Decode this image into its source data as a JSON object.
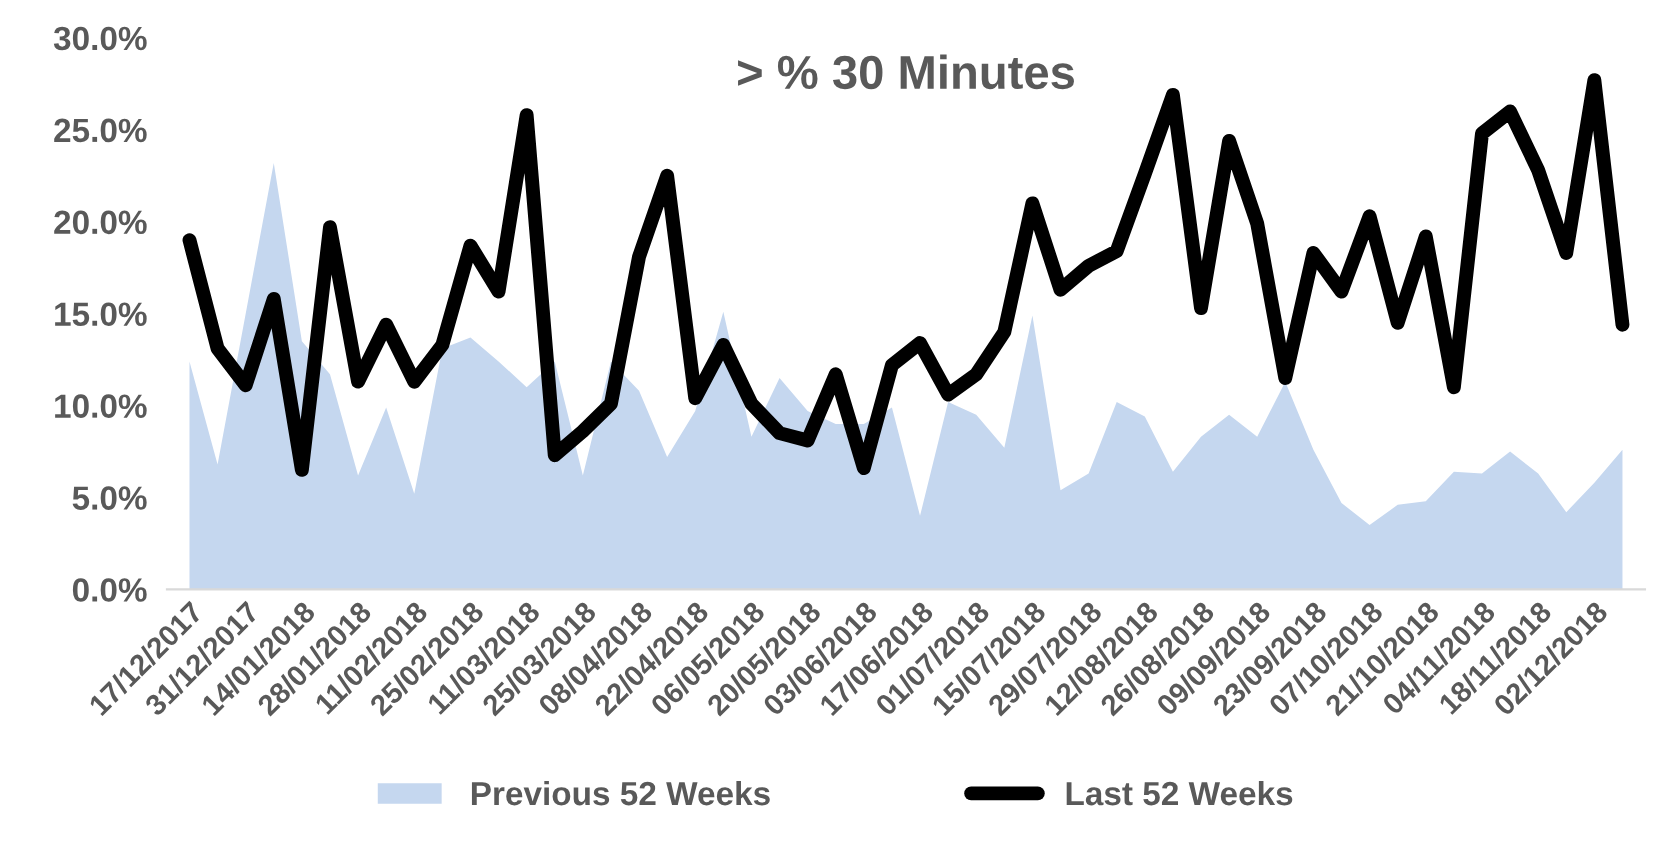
{
  "chart_data": {
    "type": "line",
    "title": "> % 30 Minutes",
    "categories": [
      "17/12/2017",
      null,
      "31/12/2017",
      null,
      "14/01/2018",
      null,
      "28/01/2018",
      null,
      "11/02/2018",
      null,
      "25/02/2018",
      null,
      "11/03/2018",
      null,
      "25/03/2018",
      null,
      "08/04/2018",
      null,
      "22/04/2018",
      null,
      "06/05/2018",
      null,
      "20/05/2018",
      null,
      "03/06/2018",
      null,
      "17/06/2018",
      null,
      "01/07/2018",
      null,
      "15/07/2018",
      null,
      "29/07/2018",
      null,
      "12/08/2018",
      null,
      "26/08/2018",
      null,
      "09/09/2018",
      null,
      "23/09/2018",
      null,
      "07/10/2018",
      null,
      "21/10/2018",
      null,
      "04/11/2018",
      null,
      "18/11/2018",
      null,
      "02/12/2018",
      null
    ],
    "series": [
      {
        "name": "Previous 52 Weeks",
        "type": "area",
        "color": "#c5d7ef",
        "values": [
          12.4,
          6.8,
          15.0,
          23.2,
          13.5,
          11.7,
          6.2,
          9.9,
          5.2,
          13.1,
          13.7,
          12.4,
          11.0,
          12.4,
          6.2,
          12.4,
          10.8,
          7.2,
          9.7,
          15.1,
          8.3,
          11.5,
          9.7,
          9.0,
          9.0,
          9.9,
          4.0,
          10.2,
          9.5,
          7.7,
          14.9,
          5.4,
          6.3,
          10.2,
          9.4,
          6.4,
          8.3,
          9.5,
          8.3,
          11.3,
          7.6,
          4.7,
          3.5,
          4.6,
          4.8,
          6.4,
          6.3,
          7.5,
          6.3,
          4.2,
          5.8,
          7.6
        ]
      },
      {
        "name": "Last 52 Weeks",
        "color": "#000000",
        "values": [
          19.0,
          13.1,
          11.1,
          15.8,
          6.5,
          19.7,
          11.3,
          14.4,
          11.3,
          13.3,
          18.7,
          16.2,
          25.8,
          7.3,
          8.6,
          10.1,
          18.1,
          22.5,
          10.4,
          13.3,
          10.1,
          8.5,
          8.1,
          11.7,
          6.6,
          12.2,
          13.4,
          10.6,
          11.7,
          14.0,
          21.0,
          16.3,
          17.6,
          18.4,
          22.6,
          26.9,
          15.3,
          24.4,
          19.9,
          11.5,
          18.3,
          16.2,
          20.3,
          14.5,
          19.2,
          11.0,
          24.8,
          26.0,
          22.8,
          18.3,
          27.7,
          14.4
        ]
      }
    ],
    "ylim": [
      0,
      30
    ],
    "yticks": [
      {
        "value": 0,
        "label": "0.0%"
      },
      {
        "value": 5,
        "label": "5.0%"
      },
      {
        "value": 10,
        "label": "10.0%"
      },
      {
        "value": 15,
        "label": "15.0%"
      },
      {
        "value": 20,
        "label": "20.0%"
      },
      {
        "value": 25,
        "label": "25.0%"
      },
      {
        "value": 30,
        "label": "30.0%"
      }
    ],
    "grid": false,
    "legend": "bottom"
  }
}
